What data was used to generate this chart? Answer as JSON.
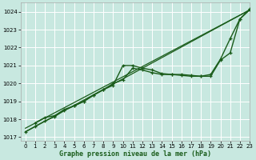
{
  "title": "Graphe pression niveau de la mer (hPa)",
  "bg_color": "#c8e8e0",
  "grid_color": "#ffffff",
  "line_color": "#1a5c1a",
  "ylim": [
    1016.8,
    1024.5
  ],
  "xlim": [
    -0.5,
    23
  ],
  "yticks": [
    1017,
    1018,
    1019,
    1020,
    1021,
    1022,
    1023,
    1024
  ],
  "xticks": [
    0,
    1,
    2,
    3,
    4,
    5,
    6,
    7,
    8,
    9,
    10,
    11,
    12,
    13,
    14,
    15,
    16,
    17,
    18,
    19,
    20,
    21,
    22,
    23
  ],
  "series": [
    {
      "x": [
        0,
        23
      ],
      "y": [
        1017.3,
        1024.1
      ],
      "marker": false,
      "linewidth": 0.9
    },
    {
      "x": [
        0,
        23
      ],
      "y": [
        1017.5,
        1024.1
      ],
      "marker": false,
      "linewidth": 0.9
    },
    {
      "x": [
        0,
        1,
        2,
        3,
        4,
        5,
        6,
        7,
        8,
        9,
        10,
        11,
        12,
        13,
        14,
        15,
        16,
        17,
        18,
        19,
        20,
        21,
        22,
        23
      ],
      "y": [
        1017.3,
        1017.6,
        1017.9,
        1018.15,
        1018.5,
        1018.75,
        1019.0,
        1019.35,
        1019.65,
        1019.9,
        1021.0,
        1021.0,
        1020.85,
        1020.75,
        1020.55,
        1020.5,
        1020.5,
        1020.45,
        1020.4,
        1020.4,
        1021.3,
        1021.7,
        1023.6,
        1024.1
      ],
      "marker": true,
      "linewidth": 1.0
    },
    {
      "x": [
        1,
        2,
        3,
        4,
        5,
        6,
        7,
        8,
        9,
        10,
        11,
        12,
        13,
        14,
        15,
        16,
        17,
        18,
        19,
        20,
        21,
        22,
        23
      ],
      "y": [
        1017.8,
        1018.1,
        1018.2,
        1018.55,
        1018.75,
        1019.0,
        1019.35,
        1019.65,
        1020.0,
        1020.2,
        1020.85,
        1020.75,
        1020.6,
        1020.5,
        1020.5,
        1020.45,
        1020.4,
        1020.4,
        1020.5,
        1021.35,
        1022.5,
        1023.6,
        1024.15
      ],
      "marker": true,
      "linewidth": 1.0
    }
  ]
}
